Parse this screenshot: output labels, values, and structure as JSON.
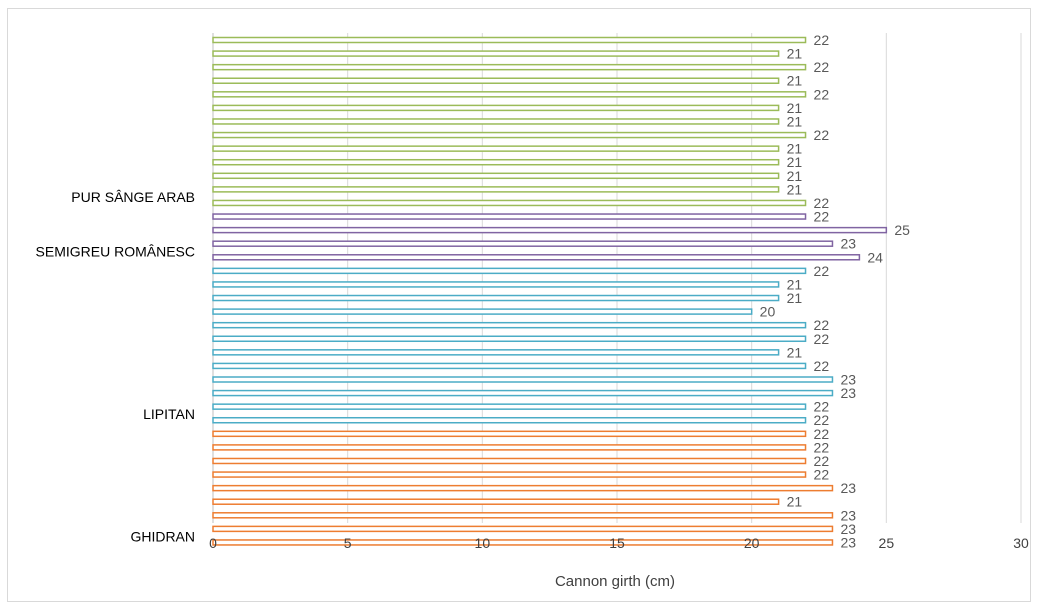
{
  "chart_data": {
    "type": "bar",
    "orientation": "horizontal",
    "title": "",
    "xlabel": "Cannon girth (cm)",
    "ylabel": "",
    "xlim": [
      0,
      30
    ],
    "xticks": [
      0,
      5,
      10,
      15,
      20,
      25,
      30
    ],
    "grid": "vertical",
    "legend": "none",
    "bar_style": "outline",
    "groups": [
      {
        "name": "GHIDRAN",
        "color": "#ed7d31",
        "values": [
          23,
          23,
          23,
          21,
          23,
          22,
          22,
          22,
          22
        ]
      },
      {
        "name": "LIPITAN",
        "color": "#4bacc6",
        "values": [
          22,
          22,
          23,
          23,
          22,
          21,
          22,
          22,
          20,
          21,
          21,
          22
        ]
      },
      {
        "name": "SEMIGREU ROMÂNESC",
        "color": "#8064a2",
        "values": [
          24,
          23,
          25,
          22
        ]
      },
      {
        "name": "PUR SÂNGE ARAB",
        "color": "#9bbb59",
        "values": [
          22,
          21,
          21,
          21,
          21,
          22,
          21,
          21,
          22,
          21,
          22,
          21,
          22
        ]
      }
    ],
    "category_labels": [
      {
        "text": "GHIDRAN",
        "group": 0,
        "index": 0
      },
      {
        "text": "LIPITAN",
        "group": 1,
        "index": 0
      },
      {
        "text": "SEMIGREU ROMÂNESC",
        "group": 2,
        "index": 0
      },
      {
        "text": "PUR SÂNGE ARAB",
        "group": 3,
        "index": 0
      }
    ]
  },
  "colors": {
    "grid": "#d9d9d9",
    "axis": "#bfbfbf",
    "data_label": "#595959"
  }
}
